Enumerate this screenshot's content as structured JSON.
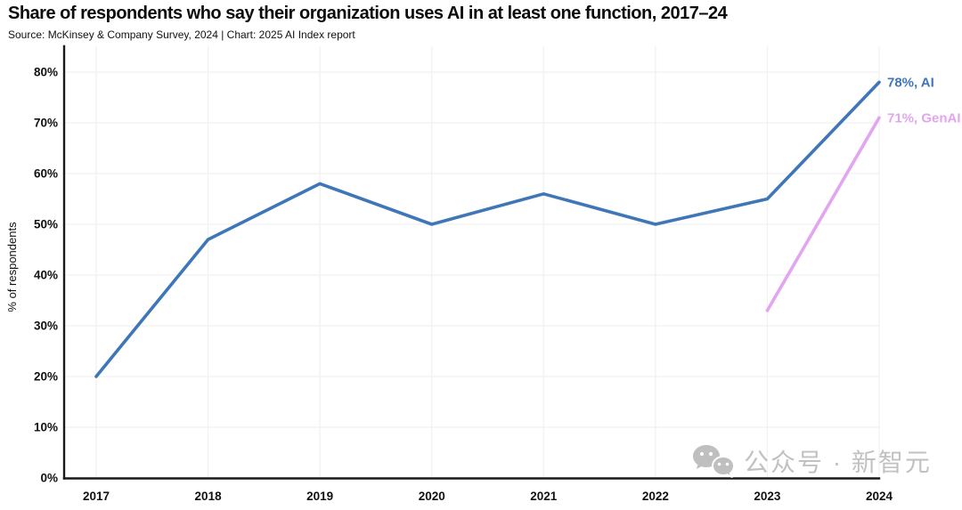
{
  "chart_data": {
    "type": "line",
    "title": "Share of respondents who say their organization uses AI in at least one function, 2017–24",
    "subtitle": "Source: McKinsey & Company Survey, 2024 | Chart: 2025 AI Index report",
    "ylabel": "% of respondents",
    "xlabel": "",
    "x": [
      2017,
      2018,
      2019,
      2020,
      2021,
      2022,
      2023,
      2024
    ],
    "xtick_labels": [
      "2017",
      "2018",
      "2019",
      "2020",
      "2021",
      "2022",
      "2023",
      "2024"
    ],
    "ylim": [
      0,
      80
    ],
    "ytick_step": 10,
    "ytick_labels": [
      "0%",
      "10%",
      "20%",
      "30%",
      "40%",
      "50%",
      "60%",
      "70%",
      "80%"
    ],
    "grid": true,
    "legend_position": "line-end-labels",
    "colors": {
      "axis": "#1a1a1a",
      "grid": "#f1f1f1",
      "tick_text": "#111111"
    },
    "series": [
      {
        "name": "AI",
        "color": "#3E76B8",
        "x": [
          2017,
          2018,
          2019,
          2020,
          2021,
          2022,
          2023,
          2024
        ],
        "values": [
          20,
          47,
          58,
          50,
          56,
          50,
          55,
          78
        ],
        "end_label": "78%, AI"
      },
      {
        "name": "GenAI",
        "color": "#E2A5F1",
        "x": [
          2023,
          2024
        ],
        "values": [
          33,
          71
        ],
        "end_label": "71%, GenAI"
      }
    ]
  },
  "watermark": {
    "text": "公众号 · 新智元",
    "icon": "wechat-icon",
    "color": "#b7b7b7"
  }
}
